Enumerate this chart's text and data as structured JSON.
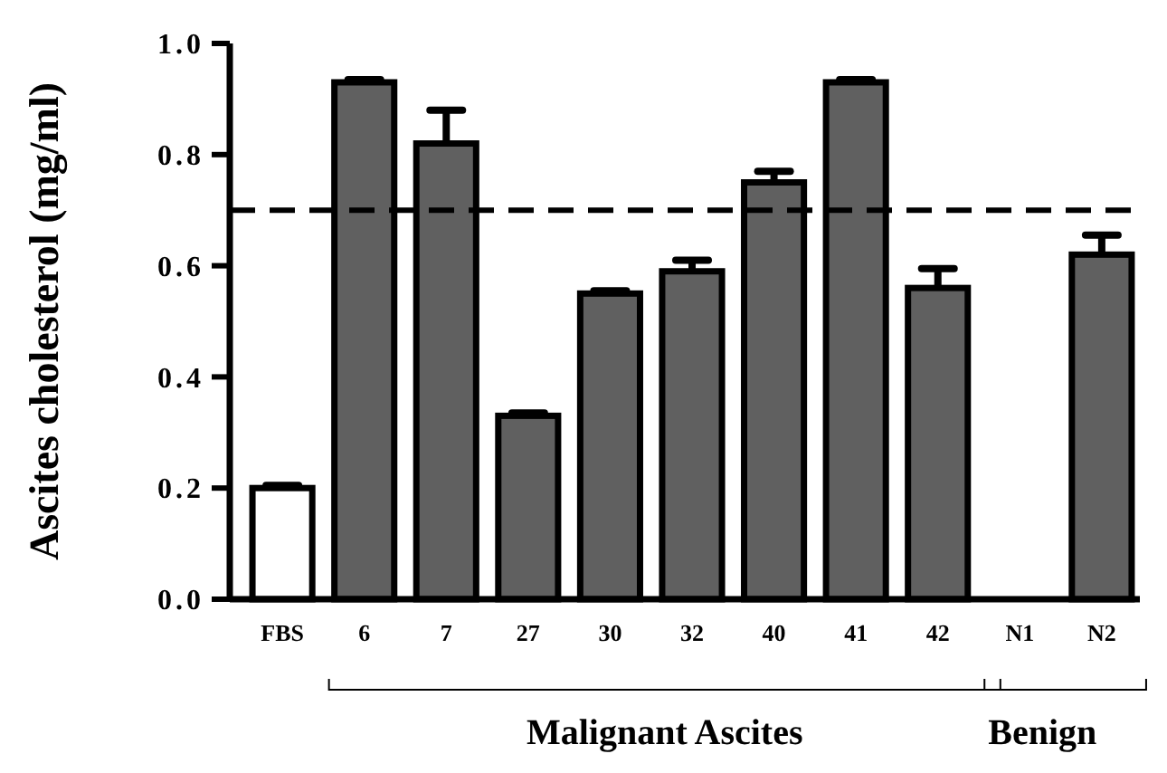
{
  "chart_data": {
    "type": "bar",
    "ylabel": "Ascites cholesterol (mg/ml)",
    "categories": [
      "FBS",
      "6",
      "7",
      "27",
      "30",
      "32",
      "40",
      "41",
      "42",
      "N1",
      "N2"
    ],
    "values": [
      0.2,
      0.93,
      0.82,
      0.33,
      0.55,
      0.59,
      0.75,
      0.93,
      0.56,
      null,
      0.62
    ],
    "errors": [
      0.005,
      0.005,
      0.06,
      0.005,
      0.005,
      0.02,
      0.02,
      0.005,
      0.035,
      null,
      0.035
    ],
    "colors": [
      "#ffffff",
      "#606060",
      "#606060",
      "#606060",
      "#606060",
      "#606060",
      "#606060",
      "#606060",
      "#606060",
      null,
      "#606060"
    ],
    "ylim": [
      0,
      1
    ],
    "yticks": [
      {
        "value": 0,
        "label": "0.0"
      },
      {
        "value": 0.2,
        "label": "0.2"
      },
      {
        "value": 0.4,
        "label": "0.4"
      },
      {
        "value": 0.6,
        "label": "0.6"
      },
      {
        "value": 0.8,
        "label": "0.8"
      },
      {
        "value": 1,
        "label": "1.0"
      }
    ],
    "ref_lines": [
      {
        "axis": "y",
        "value": 0.7,
        "line_style": "dashed"
      }
    ],
    "annotations": [
      "Malignant Ascites",
      "Benign"
    ],
    "grid": false
  }
}
